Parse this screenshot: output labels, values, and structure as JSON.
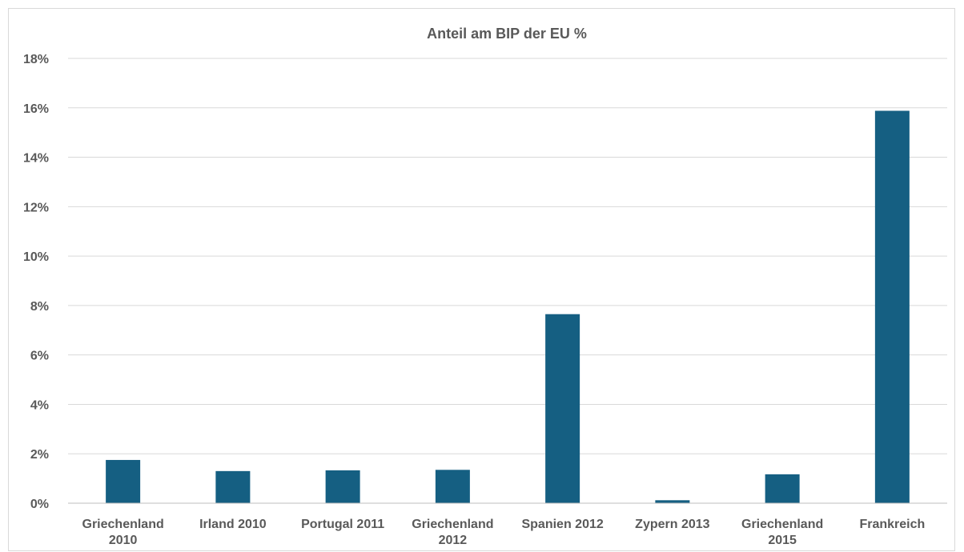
{
  "chart_data": {
    "type": "bar",
    "title": "Anteil am BIP der EU %",
    "xlabel": "",
    "ylabel": "",
    "categories": [
      [
        "Griechenland",
        "2010"
      ],
      [
        "Irland 2010"
      ],
      [
        "Portugal 2011"
      ],
      [
        "Griechenland",
        "2012"
      ],
      [
        "Spanien 2012"
      ],
      [
        "Zypern 2013"
      ],
      [
        "Griechenland",
        "2015"
      ],
      [
        "Frankreich"
      ]
    ],
    "values": [
      1.75,
      1.3,
      1.33,
      1.35,
      7.65,
      0.12,
      1.17,
      15.88
    ],
    "ylim": [
      0,
      18
    ],
    "yticks": [
      0,
      2,
      4,
      6,
      8,
      10,
      12,
      14,
      16,
      18
    ],
    "ytick_labels": [
      "0%",
      "2%",
      "4%",
      "6%",
      "8%",
      "10%",
      "12%",
      "14%",
      "16%",
      "18%"
    ],
    "grid": true,
    "bar_color": "#155f82"
  }
}
